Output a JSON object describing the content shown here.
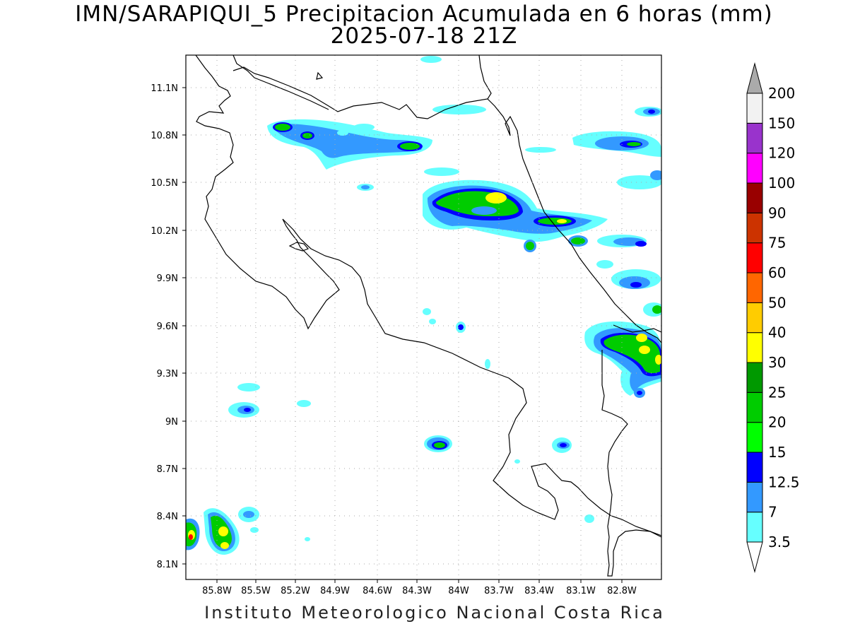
{
  "title": {
    "line1": "IMN/SARAPIQUI_5 Precipitacion Acumulada en 6 horas (mm)",
    "line2": "2025-07-18 21Z"
  },
  "footer": "Instituto Meteorologico Nacional Costa Rica",
  "map": {
    "lon_range": [
      -86.05,
      -82.55
    ],
    "lat_range": [
      8.0,
      11.3
    ],
    "grid": true,
    "lon_ticks": [
      "85.8W",
      "85.5W",
      "85.2W",
      "84.9W",
      "84.6W",
      "84.3W",
      "84W",
      "83.7W",
      "83.4W",
      "83.1W",
      "82.8W"
    ],
    "lon_tick_values": [
      -85.8,
      -85.5,
      -85.2,
      -84.9,
      -84.6,
      -84.3,
      -84.0,
      -83.7,
      -83.4,
      -83.1,
      -82.8
    ],
    "lat_ticks": [
      "11.1N",
      "10.8N",
      "10.5N",
      "10.2N",
      "9.9N",
      "9.6N",
      "9.3N",
      "9N",
      "8.7N",
      "8.4N",
      "8.1N"
    ],
    "lat_tick_values": [
      11.1,
      10.8,
      10.5,
      10.2,
      9.9,
      9.6,
      9.3,
      9.0,
      8.7,
      8.4,
      8.1
    ]
  },
  "colorbar": {
    "levels": [
      "3.5",
      "7",
      "12.5",
      "15",
      "20",
      "25",
      "30",
      "40",
      "50",
      "60",
      "75",
      "90",
      "100",
      "120",
      "150",
      "200"
    ],
    "colors": [
      "#66ffff",
      "#3399ff",
      "#0000ff",
      "#00ff00",
      "#00cc00",
      "#009900",
      "#ffff00",
      "#ffcc00",
      "#ff6600",
      "#ff0000",
      "#cc3300",
      "#990000",
      "#ff00ff",
      "#9933cc",
      "#f2f2f2",
      "#aaaaaa"
    ]
  },
  "precip_cells": [
    {
      "lon": -85.5,
      "lat": 10.8,
      "level": 4
    },
    {
      "lon": -84.3,
      "lat": 10.77,
      "level": 4
    },
    {
      "lon": -83.8,
      "lat": 10.42,
      "level": 6
    },
    {
      "lon": -83.25,
      "lat": 10.25,
      "level": 6
    },
    {
      "lon": -83.5,
      "lat": 10.12,
      "level": 4
    },
    {
      "lon": -82.75,
      "lat": 9.48,
      "level": 7
    },
    {
      "lon": -84.15,
      "lat": 8.85,
      "level": 4
    },
    {
      "lon": -85.75,
      "lat": 8.32,
      "level": 6
    },
    {
      "lon": -86.02,
      "lat": 8.3,
      "level": 9
    }
  ]
}
